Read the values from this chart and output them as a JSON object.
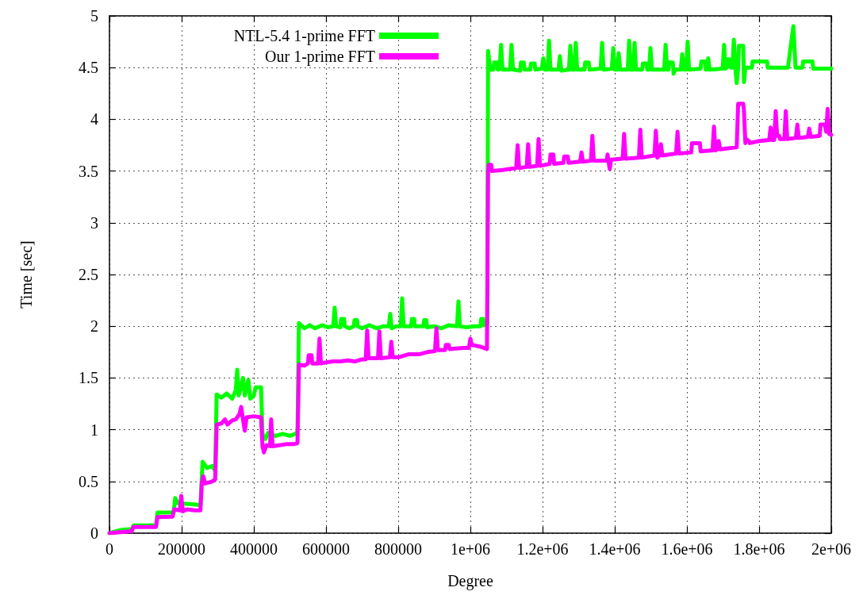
{
  "chart_data": {
    "type": "line",
    "xlabel": "Degree",
    "ylabel": "Time [sec]",
    "xlim": [
      0,
      2000000
    ],
    "ylim": [
      0,
      5
    ],
    "xticks": [
      0,
      200000,
      400000,
      600000,
      800000,
      {
        "value": 1000000,
        "label": "1e+06"
      },
      {
        "value": 1200000,
        "label": "1.2e+06"
      },
      {
        "value": 1400000,
        "label": "1.4e+06"
      },
      {
        "value": 1600000,
        "label": "1.6e+06"
      },
      {
        "value": 1800000,
        "label": "1.8e+06"
      },
      {
        "value": 2000000,
        "label": "2e+06"
      }
    ],
    "yticks": [
      0,
      0.5,
      1,
      1.5,
      2,
      2.5,
      3,
      3.5,
      4,
      4.5,
      5
    ],
    "grid": true,
    "legend": "top left",
    "marker": "none",
    "line_style": "solid",
    "series": [
      {
        "name": "NTL-5.4 1-prime FFT",
        "color": "#00ff00",
        "x": [
          0,
          30000,
          63000,
          67000,
          129000,
          133000,
          160000,
          178000,
          182000,
          190000,
          230000,
          252000,
          258000,
          270000,
          285000,
          293000,
          297000,
          310000,
          325000,
          340000,
          350000,
          354000,
          358000,
          365000,
          370000,
          375000,
          385000,
          390000,
          400000,
          405000,
          420000,
          424000,
          432000,
          440000,
          460000,
          480000,
          500000,
          515000,
          521000,
          525000,
          540000,
          555000,
          570000,
          590000,
          605000,
          620000,
          624000,
          628000,
          640000,
          642000,
          650000,
          652000,
          665000,
          677000,
          679000,
          686000,
          688000,
          700000,
          720000,
          740000,
          760000,
          774000,
          778000,
          782000,
          795000,
          807000,
          811000,
          815000,
          836000,
          838000,
          844000,
          846000,
          870000,
          872000,
          878000,
          880000,
          900000,
          920000,
          940000,
          963000,
          967000,
          971000,
          990000,
          1010000,
          1028000,
          1030000,
          1036000,
          1038000,
          1047000,
          1049000,
          1055000,
          1064000,
          1066000,
          1074000,
          1076000,
          1081000,
          1085000,
          1089000,
          1110000,
          1114000,
          1118000,
          1138000,
          1140000,
          1148000,
          1150000,
          1166000,
          1168000,
          1178000,
          1180000,
          1198000,
          1202000,
          1206000,
          1214000,
          1218000,
          1222000,
          1244000,
          1248000,
          1252000,
          1273000,
          1277000,
          1281000,
          1288000,
          1292000,
          1296000,
          1316000,
          1318000,
          1328000,
          1330000,
          1361000,
          1365000,
          1369000,
          1392000,
          1396000,
          1400000,
          1407000,
          1411000,
          1415000,
          1436000,
          1440000,
          1444000,
          1451000,
          1455000,
          1459000,
          1476000,
          1478000,
          1488000,
          1490000,
          1495000,
          1499000,
          1503000,
          1537000,
          1541000,
          1545000,
          1549000,
          1551000,
          1561000,
          1563000,
          1567000,
          1583000,
          1587000,
          1591000,
          1598000,
          1602000,
          1606000,
          1638000,
          1640000,
          1650000,
          1652000,
          1655000,
          1659000,
          1663000,
          1699000,
          1703000,
          1707000,
          1710000,
          1712000,
          1718000,
          1722000,
          1726000,
          1730000,
          1734000,
          1738000,
          1742000,
          1744000,
          1756000,
          1758000,
          1762000,
          1780000,
          1782000,
          1822000,
          1824000,
          1880000,
          1887000,
          1895000,
          1901000,
          1920000,
          1922000,
          1948000,
          1950000,
          1970000,
          2000000
        ],
        "values": [
          0,
          0.03,
          0.04,
          0.075,
          0.075,
          0.2,
          0.2,
          0.2,
          0.34,
          0.29,
          0.28,
          0.27,
          0.69,
          0.63,
          0.65,
          0.6,
          1.34,
          1.31,
          1.35,
          1.3,
          1.38,
          1.58,
          1.33,
          1.42,
          1.5,
          1.33,
          1.48,
          1.3,
          1.33,
          1.41,
          1.41,
          0.96,
          0.91,
          0.97,
          0.94,
          0.96,
          0.94,
          0.96,
          0.98,
          2.03,
          1.98,
          2.01,
          1.98,
          2.01,
          1.99,
          2,
          2.18,
          2,
          1.99,
          2.07,
          2.07,
          2,
          1.98,
          2,
          2.06,
          2.06,
          2,
          1.98,
          2.01,
          1.98,
          2,
          2,
          2.12,
          1.98,
          2,
          2,
          2.27,
          2,
          2,
          2.07,
          2.07,
          2,
          2,
          2.06,
          2.06,
          1.99,
          2,
          1.98,
          2.01,
          2,
          2.24,
          2,
          1.99,
          2,
          2,
          2.07,
          2.07,
          2.01,
          2.02,
          4.66,
          4.48,
          4.48,
          4.55,
          4.55,
          4.48,
          4.49,
          4.72,
          4.48,
          4.48,
          4.72,
          4.48,
          4.47,
          4.55,
          4.55,
          4.48,
          4.48,
          4.54,
          4.54,
          4.48,
          4.49,
          4.59,
          4.48,
          4.48,
          4.76,
          4.48,
          4.48,
          4.61,
          4.47,
          4.48,
          4.71,
          4.48,
          4.48,
          4.74,
          4.48,
          4.48,
          4.55,
          4.55,
          4.48,
          4.49,
          4.74,
          4.48,
          4.49,
          4.69,
          4.48,
          4.48,
          4.64,
          4.48,
          4.48,
          4.76,
          4.48,
          4.48,
          4.74,
          4.48,
          4.48,
          4.54,
          4.54,
          4.48,
          4.48,
          4.69,
          4.48,
          4.48,
          4.72,
          4.48,
          4.48,
          4.55,
          4.55,
          4.44,
          4.48,
          4.48,
          4.63,
          4.48,
          4.48,
          4.75,
          4.48,
          4.49,
          4.56,
          4.56,
          4.48,
          4.48,
          4.59,
          4.48,
          4.49,
          4.72,
          4.49,
          4.5,
          4.58,
          4.58,
          4.5,
          4.5,
          4.77,
          4.5,
          4.35,
          4.5,
          4.71,
          4.71,
          4.36,
          4.5,
          4.5,
          4.56,
          4.56,
          4.5,
          4.5,
          4.69,
          4.9,
          4.5,
          4.5,
          4.56,
          4.56,
          4.49,
          4.49,
          4.49
        ]
      },
      {
        "name": "Our 1-prime FFT",
        "color": "#ff00ff",
        "x": [
          0,
          30000,
          62000,
          66000,
          129000,
          133000,
          175000,
          179000,
          195000,
          199000,
          203000,
          215000,
          235000,
          252000,
          256000,
          260000,
          265000,
          285000,
          293000,
          297000,
          310000,
          320000,
          327000,
          340000,
          350000,
          360000,
          365000,
          370000,
          375000,
          380000,
          400000,
          420000,
          424000,
          428000,
          435000,
          445000,
          448000,
          452000,
          470000,
          490000,
          510000,
          521000,
          525000,
          540000,
          550000,
          552000,
          560000,
          562000,
          578000,
          582000,
          586000,
          600000,
          620000,
          640000,
          660000,
          680000,
          700000,
          710000,
          714000,
          718000,
          744000,
          748000,
          752000,
          777000,
          781000,
          785000,
          800000,
          830000,
          860000,
          880000,
          902000,
          906000,
          910000,
          930000,
          932000,
          940000,
          942000,
          980000,
          996000,
          1000000,
          1004000,
          1030000,
          1046000,
          1049000,
          1051000,
          1058000,
          1060000,
          1090000,
          1127000,
          1131000,
          1135000,
          1156000,
          1160000,
          1164000,
          1185000,
          1189000,
          1193000,
          1220000,
          1222000,
          1230000,
          1232000,
          1258000,
          1260000,
          1270000,
          1272000,
          1304000,
          1308000,
          1312000,
          1334000,
          1338000,
          1342000,
          1378000,
          1380000,
          1386000,
          1390000,
          1422000,
          1426000,
          1430000,
          1467000,
          1471000,
          1475000,
          1510000,
          1514000,
          1518000,
          1524000,
          1528000,
          1532000,
          1570000,
          1574000,
          1578000,
          1612000,
          1614000,
          1636000,
          1638000,
          1671000,
          1675000,
          1679000,
          1684000,
          1688000,
          1692000,
          1738000,
          1742000,
          1756000,
          1758000,
          1762000,
          1764000,
          1772000,
          1774000,
          1800000,
          1828000,
          1832000,
          1836000,
          1842000,
          1846000,
          1850000,
          1856000,
          1858000,
          1870000,
          1874000,
          1878000,
          1902000,
          1906000,
          1910000,
          1935000,
          1939000,
          1943000,
          1968000,
          1970000,
          1982000,
          1986000,
          1990000,
          1994000,
          2000000
        ],
        "values": [
          0,
          0.01,
          0.02,
          0.06,
          0.06,
          0.155,
          0.16,
          0.23,
          0.22,
          0.36,
          0.21,
          0.23,
          0.22,
          0.22,
          0.49,
          0.55,
          0.48,
          0.5,
          0.52,
          1.05,
          1.06,
          1.1,
          1.05,
          1.09,
          1.1,
          1.15,
          1.22,
          1.1,
          0.99,
          1.12,
          1.13,
          1.12,
          0.84,
          0.78,
          0.85,
          0.84,
          1.1,
          0.84,
          0.85,
          0.86,
          0.86,
          0.87,
          1.63,
          1.62,
          1.64,
          1.72,
          1.72,
          1.64,
          1.64,
          1.88,
          1.64,
          1.65,
          1.66,
          1.66,
          1.67,
          1.66,
          1.68,
          1.68,
          1.96,
          1.69,
          1.69,
          1.95,
          1.69,
          1.7,
          1.85,
          1.7,
          1.7,
          1.73,
          1.73,
          1.75,
          1.76,
          1.98,
          1.77,
          1.77,
          1.82,
          1.82,
          1.78,
          1.79,
          1.79,
          1.88,
          1.82,
          1.8,
          1.78,
          3.49,
          3.56,
          3.56,
          3.5,
          3.51,
          3.53,
          3.75,
          3.53,
          3.54,
          3.76,
          3.54,
          3.55,
          3.81,
          3.55,
          3.57,
          3.66,
          3.66,
          3.57,
          3.58,
          3.64,
          3.64,
          3.58,
          3.59,
          3.68,
          3.59,
          3.6,
          3.84,
          3.6,
          3.6,
          3.66,
          3.52,
          3.61,
          3.62,
          3.86,
          3.62,
          3.63,
          3.9,
          3.63,
          3.65,
          3.89,
          3.63,
          3.65,
          3.76,
          3.65,
          3.67,
          3.88,
          3.67,
          3.68,
          3.77,
          3.77,
          3.69,
          3.7,
          3.93,
          3.7,
          3.71,
          3.79,
          3.71,
          3.73,
          4.15,
          4.15,
          4.09,
          3.77,
          3.81,
          3.79,
          3.77,
          3.79,
          3.8,
          3.92,
          3.8,
          3.8,
          4.08,
          3.84,
          3.84,
          3.81,
          3.81,
          4.08,
          3.81,
          3.82,
          3.95,
          3.82,
          3.83,
          3.91,
          3.83,
          3.84,
          3.95,
          3.95,
          3.88,
          4.1,
          3.86,
          3.85
        ]
      }
    ]
  }
}
